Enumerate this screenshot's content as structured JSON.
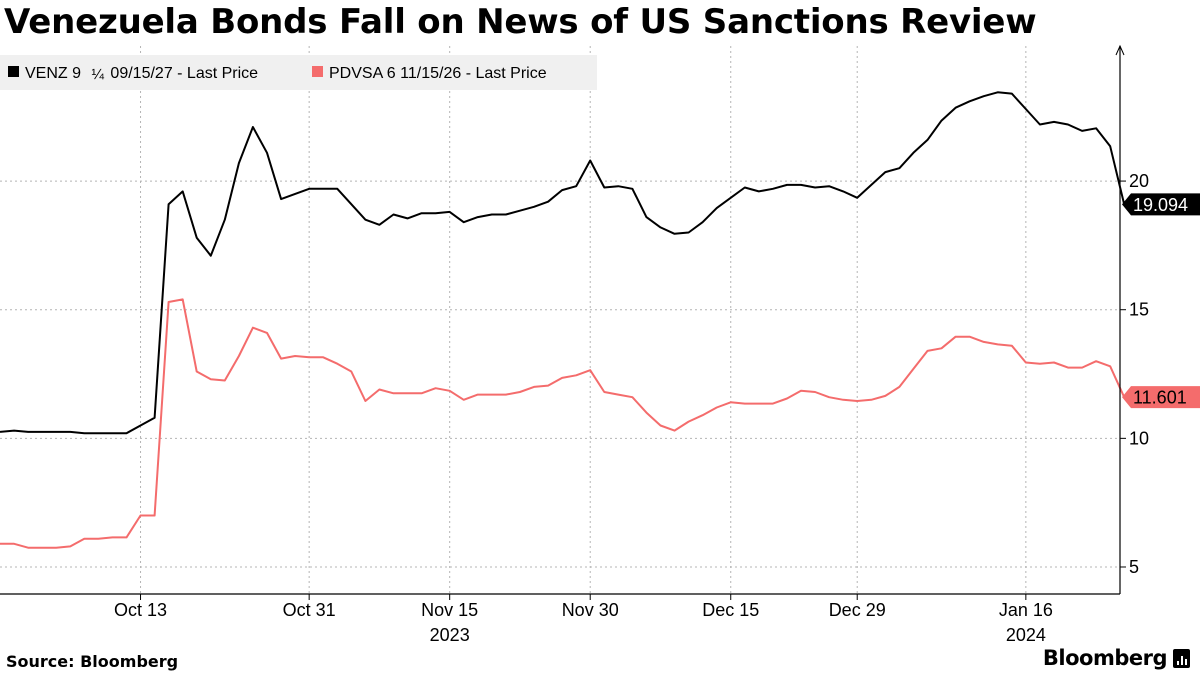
{
  "title": "Venezuela Bonds Fall on News of US Sanctions Review",
  "source": "Source: Bloomberg",
  "brand": "Bloomberg",
  "chart_data": {
    "type": "line",
    "x_axis": {
      "ticks": [
        {
          "label": "Oct 13",
          "index": 10
        },
        {
          "label": "Oct 31",
          "index": 22
        },
        {
          "label": "Nov 15",
          "index": 32
        },
        {
          "label": "Nov 30",
          "index": 42
        },
        {
          "label": "Dec 15",
          "index": 52
        },
        {
          "label": "Dec 29",
          "index": 61
        },
        {
          "label": "Jan 16",
          "index": 73
        }
      ],
      "years": [
        {
          "label": "2023",
          "index": 32
        },
        {
          "label": "2024",
          "index": 73
        }
      ],
      "range": [
        1,
        80.7
      ]
    },
    "y_axis": {
      "ticks": [
        5,
        10,
        15,
        20
      ],
      "ylim": [
        3.95,
        25.25
      ],
      "position": "right"
    },
    "legend": {
      "placement": "top-left"
    },
    "series": [
      {
        "name": "VENZ 9 ¼ 09/15/27 - Last Price",
        "legend_label_parts": [
          "VENZ 9 ",
          "¼",
          " 09/15/27 - Last Price"
        ],
        "color": "#000000",
        "last_value": "19.094",
        "values": [
          10.25,
          10.3,
          10.25,
          10.25,
          10.25,
          10.25,
          10.2,
          10.2,
          10.2,
          10.2,
          10.5,
          10.8,
          19.1,
          19.6,
          17.8,
          17.1,
          18.5,
          20.7,
          22.1,
          21.1,
          19.3,
          19.5,
          19.7,
          19.7,
          19.7,
          19.1,
          18.5,
          18.3,
          18.7,
          18.55,
          18.75,
          18.75,
          18.8,
          18.4,
          18.6,
          18.7,
          18.7,
          18.85,
          19.0,
          19.2,
          19.65,
          19.8,
          20.8,
          19.75,
          19.8,
          19.7,
          18.6,
          18.2,
          17.95,
          18.0,
          18.4,
          18.95,
          19.35,
          19.75,
          19.6,
          19.7,
          19.85,
          19.85,
          19.75,
          19.8,
          19.6,
          19.35,
          19.85,
          20.35,
          20.5,
          21.1,
          21.6,
          22.35,
          22.85,
          23.1,
          23.3,
          23.45,
          23.4,
          22.8,
          22.2,
          22.3,
          22.2,
          21.95,
          22.05,
          21.35,
          19.094
        ]
      },
      {
        "name": "PDVSA 6 11/15/26 - Last Price",
        "color": "#f46c6c",
        "last_value": "11.601",
        "values": [
          5.9,
          5.9,
          5.75,
          5.75,
          5.75,
          5.8,
          6.1,
          6.1,
          6.15,
          6.15,
          7.0,
          7.0,
          15.3,
          15.4,
          12.6,
          12.3,
          12.25,
          13.2,
          14.3,
          14.1,
          13.1,
          13.2,
          13.15,
          13.15,
          12.9,
          12.6,
          11.45,
          11.9,
          11.75,
          11.75,
          11.75,
          11.95,
          11.85,
          11.5,
          11.7,
          11.7,
          11.7,
          11.8,
          12.0,
          12.05,
          12.35,
          12.45,
          12.65,
          11.8,
          11.7,
          11.6,
          11.0,
          10.5,
          10.3,
          10.65,
          10.9,
          11.2,
          11.4,
          11.35,
          11.35,
          11.35,
          11.55,
          11.85,
          11.8,
          11.6,
          11.5,
          11.45,
          11.5,
          11.65,
          12.0,
          12.7,
          13.4,
          13.5,
          13.95,
          13.95,
          13.75,
          13.65,
          13.6,
          12.95,
          12.9,
          12.95,
          12.75,
          12.75,
          13.0,
          12.8,
          11.601
        ]
      }
    ]
  }
}
